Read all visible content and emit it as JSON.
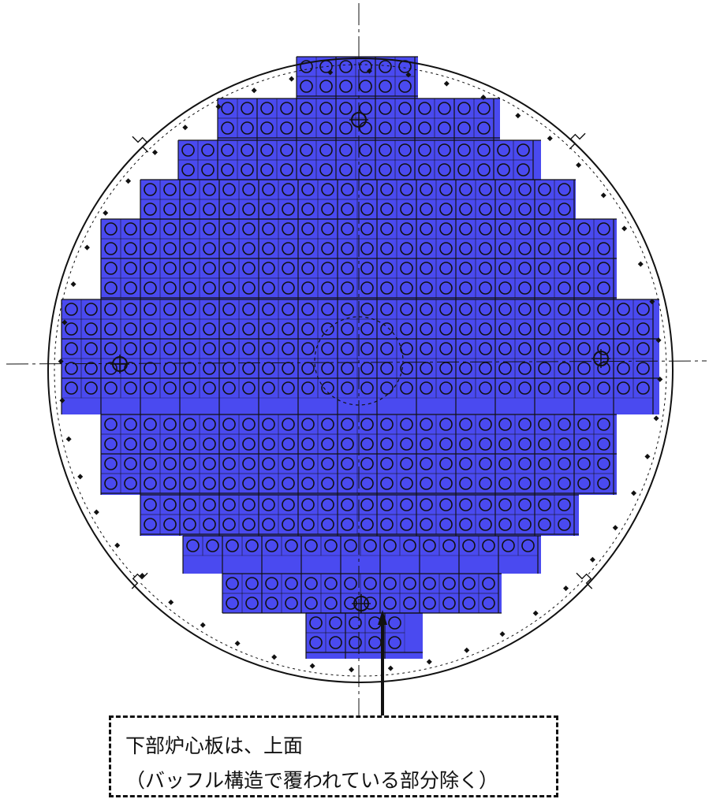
{
  "callout": {
    "line1": "下部炉心板は、上面",
    "line2": "（バッフル構造で覆われている部分除く）"
  },
  "colors": {
    "highlight": "#4a4af0",
    "line": "#111111",
    "background": "#ffffff"
  }
}
